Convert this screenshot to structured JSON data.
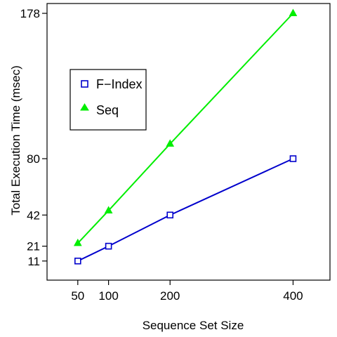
{
  "chart_data": {
    "type": "line",
    "title": "",
    "xlabel": "Sequence Set Size",
    "ylabel": "Total Execution Time (msec)",
    "x": [
      50,
      100,
      200,
      400
    ],
    "xticks": [
      50,
      100,
      200,
      400
    ],
    "yticks": [
      11,
      21,
      42,
      80,
      178
    ],
    "xlim": [
      0,
      460
    ],
    "ylim": [
      0,
      178
    ],
    "grid": false,
    "legend": "upper-left",
    "series": [
      {
        "name": "F−Index",
        "values": [
          11,
          21,
          42,
          80
        ],
        "color": "#0000cc",
        "marker": "square-open"
      },
      {
        "name": "Seq",
        "values": [
          23,
          45,
          90,
          178
        ],
        "color": "#00ee00",
        "marker": "triangle-filled"
      }
    ]
  }
}
